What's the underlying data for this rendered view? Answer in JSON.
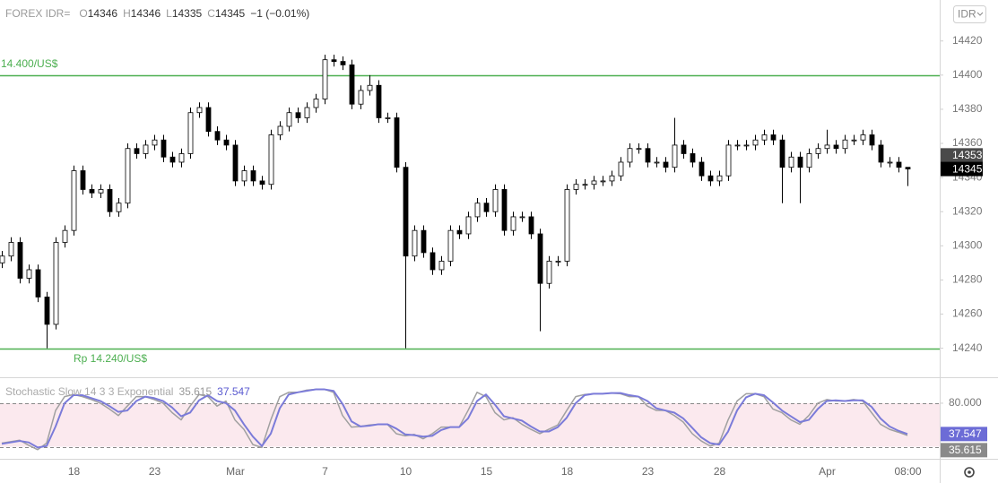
{
  "header": {
    "symbol": "FOREX IDR=",
    "ohlc_labels": [
      "O",
      "H",
      "L",
      "C"
    ],
    "change": "−1 (−0.01%)",
    "currency": "IDR"
  },
  "chart_data": [
    {
      "type": "candlestick",
      "categories": [
        null,
        null,
        null,
        null,
        null,
        null,
        null,
        null,
        "18",
        null,
        null,
        null,
        null,
        null,
        null,
        null,
        null,
        "23",
        null,
        null,
        null,
        null,
        null,
        null,
        null,
        null,
        "Mar",
        null,
        null,
        null,
        null,
        null,
        null,
        null,
        null,
        null,
        "7",
        null,
        null,
        null,
        null,
        null,
        null,
        null,
        null,
        "10",
        null,
        null,
        null,
        null,
        null,
        null,
        null,
        null,
        "15",
        null,
        null,
        null,
        null,
        null,
        null,
        null,
        null,
        "18",
        null,
        null,
        null,
        null,
        null,
        null,
        null,
        null,
        "23",
        null,
        null,
        null,
        null,
        null,
        null,
        null,
        "28",
        null,
        null,
        null,
        null,
        null,
        null,
        null,
        null,
        null,
        null,
        null,
        "Apr",
        null,
        null,
        null,
        null,
        null,
        null,
        null,
        null,
        "08:00"
      ],
      "open": [
        14290,
        14294,
        14302,
        14281,
        14286,
        14270,
        14254,
        14302,
        14309,
        14344,
        14333,
        14331,
        14333,
        14320,
        14325,
        14357,
        14354,
        14359,
        14362,
        14352,
        14349,
        14354,
        14378,
        14381,
        14367,
        14362,
        14359,
        14338,
        14344,
        14338,
        14336,
        14365,
        14370,
        14378,
        14375,
        14381,
        14386,
        14409,
        14408,
        14406,
        14383,
        14391,
        14394,
        14375,
        14375,
        14346,
        14294,
        14309,
        14296,
        14286,
        14291,
        14309,
        14307,
        14317,
        14325,
        14320,
        14333,
        14309,
        14317,
        14317,
        14307,
        14278,
        14291,
        14291,
        14333,
        14336,
        14336,
        14338,
        14338,
        14341,
        14349,
        14357,
        14357,
        14349,
        14349,
        14346,
        14359,
        14354,
        14349,
        14341,
        14338,
        14341,
        14359,
        14359,
        14359,
        14362,
        14365,
        14362,
        14346,
        14352,
        14346,
        14354,
        14357,
        14359,
        14357,
        14362,
        14362,
        14365,
        14359,
        14349,
        14349,
        14346
      ],
      "high": [
        14297,
        14305,
        14305,
        14289,
        14289,
        14273,
        14305,
        14312,
        14347,
        14347,
        14336,
        14336,
        14336,
        14328,
        14360,
        14360,
        14362,
        14365,
        14365,
        14355,
        14357,
        14381,
        14384,
        14384,
        14370,
        14365,
        14362,
        14347,
        14347,
        14341,
        14368,
        14373,
        14381,
        14381,
        14384,
        14389,
        14412,
        14412,
        14411,
        14409,
        14394,
        14400,
        14397,
        14378,
        14378,
        14349,
        14312,
        14312,
        14299,
        14294,
        14312,
        14312,
        14320,
        14328,
        14328,
        14336,
        14336,
        14320,
        14320,
        14320,
        14310,
        14294,
        14294,
        14336,
        14339,
        14339,
        14341,
        14341,
        14344,
        14352,
        14360,
        14360,
        14360,
        14352,
        14352,
        14375,
        14362,
        14357,
        14352,
        14344,
        14344,
        14362,
        14362,
        14362,
        14365,
        14368,
        14368,
        14365,
        14355,
        14355,
        14357,
        14360,
        14368,
        14362,
        14365,
        14365,
        14368,
        14368,
        14362,
        14352,
        14352,
        14346
      ],
      "low": [
        14287,
        14291,
        14278,
        14278,
        14267,
        14240,
        14251,
        14299,
        14306,
        14330,
        14328,
        14328,
        14317,
        14317,
        14322,
        14351,
        14351,
        14356,
        14349,
        14346,
        14346,
        14351,
        14375,
        14364,
        14359,
        14356,
        14335,
        14335,
        14335,
        14333,
        14333,
        14362,
        14367,
        14372,
        14372,
        14378,
        14383,
        14405,
        14403,
        14380,
        14380,
        14388,
        14372,
        14372,
        14343,
        14240,
        14291,
        14293,
        14283,
        14283,
        14288,
        14304,
        14304,
        14314,
        14317,
        14317,
        14306,
        14306,
        14314,
        14304,
        14250,
        14275,
        14288,
        14288,
        14330,
        14333,
        14333,
        14335,
        14335,
        14338,
        14346,
        14354,
        14346,
        14346,
        14343,
        14343,
        14351,
        14346,
        14338,
        14335,
        14335,
        14338,
        14356,
        14356,
        14356,
        14359,
        14359,
        14325,
        14343,
        14325,
        14343,
        14351,
        14354,
        14354,
        14354,
        14359,
        14359,
        14356,
        14346,
        14346,
        14343,
        14335
      ],
      "close": [
        14294,
        14302,
        14281,
        14286,
        14270,
        14254,
        14302,
        14309,
        14344,
        14333,
        14331,
        14333,
        14320,
        14325,
        14357,
        14354,
        14359,
        14362,
        14352,
        14349,
        14354,
        14378,
        14381,
        14367,
        14362,
        14359,
        14338,
        14344,
        14338,
        14336,
        14365,
        14370,
        14378,
        14375,
        14381,
        14386,
        14409,
        14408,
        14406,
        14383,
        14391,
        14394,
        14375,
        14375,
        14346,
        14294,
        14309,
        14296,
        14286,
        14291,
        14309,
        14307,
        14317,
        14325,
        14320,
        14333,
        14309,
        14317,
        14317,
        14307,
        14278,
        14291,
        14291,
        14333,
        14336,
        14336,
        14338,
        14338,
        14341,
        14349,
        14357,
        14357,
        14349,
        14349,
        14346,
        14359,
        14354,
        14349,
        14341,
        14338,
        14341,
        14359,
        14359,
        14359,
        14362,
        14365,
        14362,
        14346,
        14352,
        14346,
        14354,
        14357,
        14359,
        14357,
        14362,
        14362,
        14365,
        14359,
        14349,
        14349,
        14346,
        14345
      ],
      "up_color": "#ffffff",
      "down_color": "#000000",
      "ylim": [
        14223,
        14444
      ],
      "yticks": [
        14240,
        14260,
        14280,
        14300,
        14320,
        14340,
        14360,
        14380,
        14400,
        14420
      ],
      "hlines": [
        {
          "value": 14400,
          "label": "14.400/US$",
          "color": "#4caf50"
        },
        {
          "value": 14240,
          "label": "Rp 14.240/US$",
          "color": "#4caf50"
        }
      ],
      "price_marks": [
        14353,
        14345
      ]
    },
    {
      "type": "line",
      "title": "Stochastic Slow 14 3 3 Exponential",
      "series": [
        {
          "color": "#a0a0a0",
          "values": [
            25,
            27,
            29,
            22,
            16,
            25,
            70,
            89,
            92,
            89,
            85,
            80,
            72,
            63,
            76,
            89,
            89,
            85,
            80,
            67,
            57,
            76,
            92,
            89,
            76,
            83,
            57,
            44,
            23,
            19,
            57,
            89,
            95,
            95,
            98,
            99,
            99,
            95,
            63,
            47,
            48,
            50,
            51,
            51,
            38,
            35,
            37,
            31,
            38,
            47,
            47,
            47,
            70,
            95,
            89,
            67,
            57,
            60,
            51,
            44,
            38,
            44,
            50,
            70,
            89,
            92,
            93,
            93,
            94,
            93,
            89,
            89,
            76,
            70,
            70,
            63,
            54,
            38,
            28,
            21,
            25,
            57,
            83,
            93,
            93,
            89,
            72,
            67,
            57,
            51,
            63,
            80,
            85,
            83,
            83,
            85,
            83,
            67,
            51,
            44,
            40,
            35.615
          ]
        },
        {
          "color": "#7b7bd9",
          "values": [
            24,
            26,
            28,
            26,
            19,
            21,
            48,
            80,
            91,
            91,
            87,
            83,
            76,
            68,
            70,
            83,
            89,
            87,
            83,
            74,
            62,
            67,
            84,
            91,
            83,
            80,
            70,
            51,
            34,
            21,
            38,
            73,
            92,
            95,
            97,
            99,
            99,
            97,
            79,
            55,
            48,
            49,
            51,
            51,
            45,
            37,
            36,
            34,
            35,
            43,
            47,
            47,
            59,
            83,
            92,
            78,
            62,
            59,
            56,
            48,
            41,
            41,
            47,
            60,
            80,
            91,
            93,
            93,
            94,
            94,
            91,
            89,
            83,
            73,
            70,
            67,
            59,
            46,
            33,
            25,
            23,
            41,
            70,
            88,
            93,
            91,
            81,
            70,
            62,
            54,
            57,
            72,
            83,
            84,
            83,
            84,
            84,
            75,
            59,
            48,
            42,
            37.547
          ]
        }
      ],
      "ylim": [
        3.4,
        114.5
      ],
      "yticks": [
        {
          "value": 80,
          "label": "80.000"
        }
      ],
      "band": [
        20,
        80
      ],
      "band_color": "#fbe9ee"
    }
  ]
}
